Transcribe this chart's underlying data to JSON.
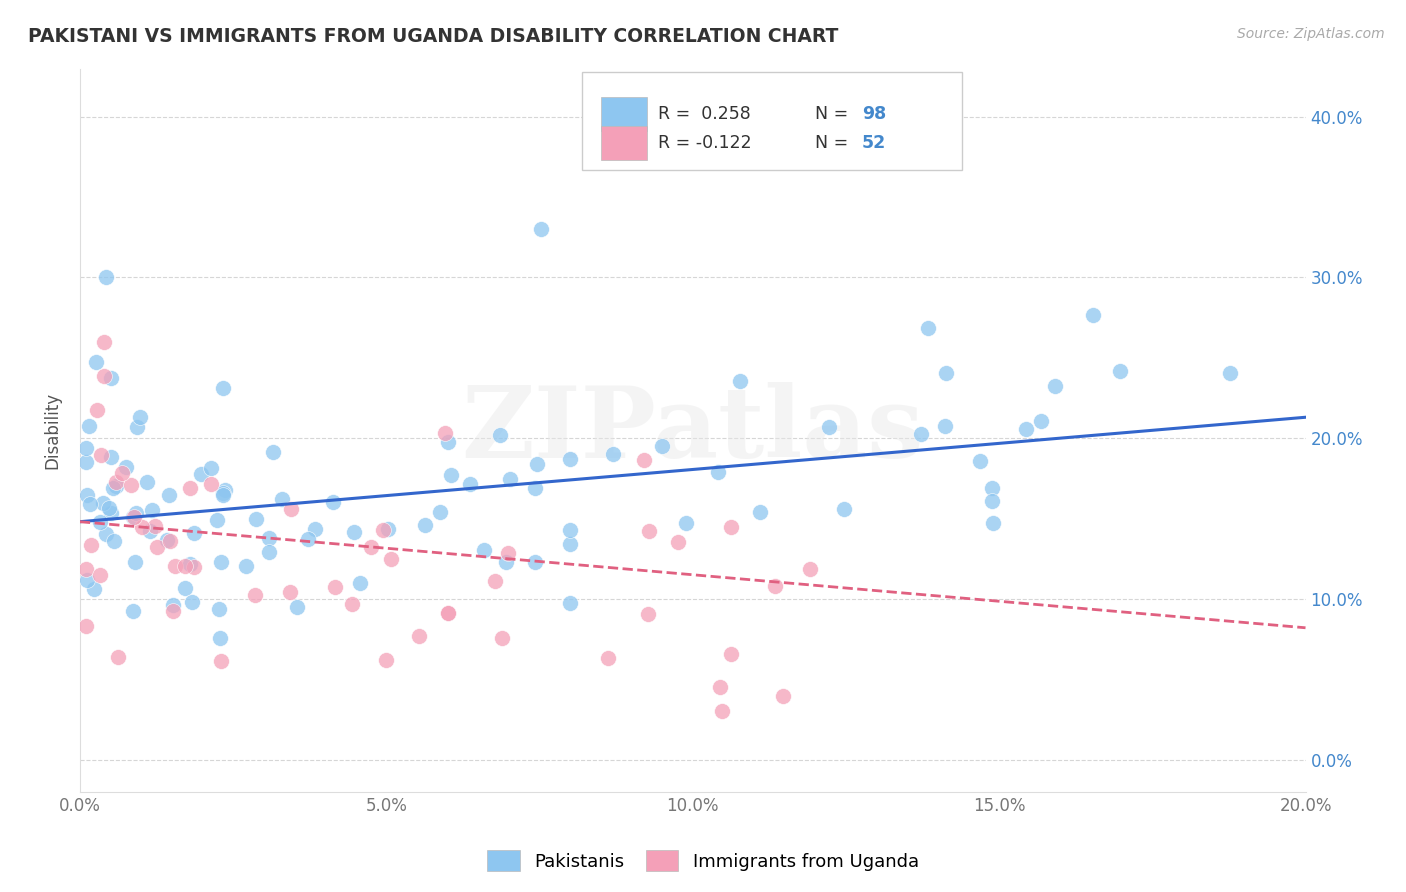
{
  "title": "PAKISTANI VS IMMIGRANTS FROM UGANDA DISABILITY CORRELATION CHART",
  "source": "Source: ZipAtlas.com",
  "xlim": [
    0.0,
    0.2
  ],
  "ylim": [
    -0.02,
    0.43
  ],
  "pakistani_R": 0.258,
  "pakistani_N": 98,
  "uganda_R": -0.122,
  "uganda_N": 52,
  "blue_color": "#8ec6f0",
  "pink_color": "#f4a0b8",
  "blue_line_color": "#3366cc",
  "pink_line_color": "#e06080",
  "label_color": "#4488cc",
  "watermark": "ZIPatlas",
  "legend_label_1": "Pakistanis",
  "legend_label_2": "Immigrants from Uganda",
  "pak_line_x0": 0.0,
  "pak_line_y0": 0.148,
  "pak_line_x1": 0.2,
  "pak_line_y1": 0.213,
  "uga_line_x0": 0.0,
  "uga_line_y0": 0.148,
  "uga_line_x1": 0.2,
  "uga_line_y1": 0.082
}
